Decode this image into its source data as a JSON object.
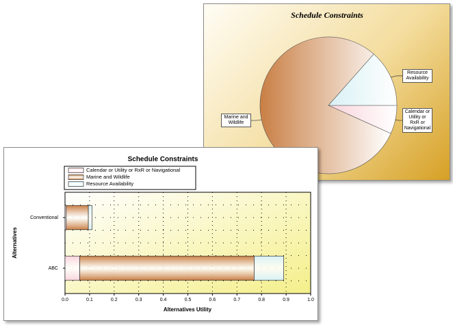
{
  "chart_data": [
    {
      "type": "pie",
      "title": "Schedule Constraints",
      "categories": [
        "Calendar or Utility or RxR or Navigational",
        "Marine and Wildlife",
        "Resource Availability"
      ],
      "values": [
        0.06,
        0.71,
        0.12
      ],
      "colors": [
        "#f9d4dc",
        "#c97f45",
        "#d8f1f4"
      ]
    },
    {
      "type": "stacked-bar-horizontal",
      "title": "Schedule Constraints",
      "categories": [
        "Conventional",
        "ABC"
      ],
      "series": [
        {
          "name": "Calendar or Utility or RxR or Navigational",
          "color": "#f9d4dc",
          "values": [
            0.005,
            0.06
          ]
        },
        {
          "name": "Marine and Wildlife",
          "color": "#c97f45",
          "values": [
            0.09,
            0.71
          ]
        },
        {
          "name": "Resource Availability",
          "color": "#d8f1f4",
          "values": [
            0.015,
            0.12
          ]
        }
      ],
      "xlabel": "Alternatives Utility",
      "ylabel": "Alternatives",
      "xlim": [
        0,
        1
      ],
      "xticks": [
        {
          "value": 0,
          "label": "0.0"
        },
        0.1,
        0.2,
        0.3,
        0.4,
        0.5,
        0.6,
        0.7,
        0.8,
        0.9,
        {
          "value": 1,
          "label": "1.0"
        }
      ],
      "grid": true,
      "legend": "top"
    }
  ]
}
